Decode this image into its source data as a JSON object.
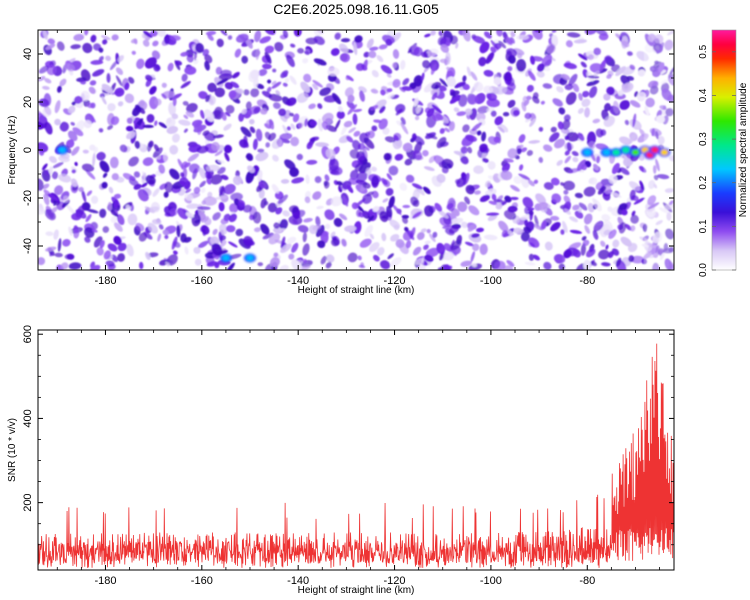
{
  "title": "C2E6.2025.098.16.11.G05",
  "chart_data": [
    {
      "type": "heatmap",
      "title": "C2E6.2025.098.16.11.G05",
      "xlabel": "Height of straight line (km)",
      "ylabel": "Frequency (Hz)",
      "xlim": [
        -194,
        -62
      ],
      "ylim": [
        -50,
        50
      ],
      "x_ticks": [
        -180,
        -160,
        -140,
        -120,
        -100,
        -80
      ],
      "x_tick_labels": [
        "-180",
        "-160",
        "-140",
        "-120",
        "-100",
        "-80"
      ],
      "y_ticks": [
        -40,
        -20,
        0,
        20,
        40
      ],
      "y_tick_labels": [
        "-40",
        "-20",
        "0",
        "20",
        "40"
      ],
      "colorbar": {
        "label": "Normalized spectral amplitude",
        "range": [
          0,
          0.55
        ],
        "ticks": [
          0,
          0.1,
          0.2,
          0.3,
          0.4,
          0.5
        ],
        "tick_labels": [
          "0.0",
          "0.1",
          "0.2",
          "0.3",
          "0.4",
          "0.5"
        ],
        "colormap": "rainbow (white-purple-blue-cyan-green-yellow-red-magenta)"
      },
      "background_level": 0.1,
      "hot_spots": [
        {
          "x": -80,
          "y": -1,
          "value": 0.12
        },
        {
          "x": -76,
          "y": -1,
          "value": 0.14
        },
        {
          "x": -74,
          "y": -1,
          "value": 0.16
        },
        {
          "x": -72,
          "y": 0,
          "value": 0.2
        },
        {
          "x": -70,
          "y": -1,
          "value": 0.25
        },
        {
          "x": -68,
          "y": 0,
          "value": 0.35
        },
        {
          "x": -67,
          "y": -2,
          "value": 0.5
        },
        {
          "x": -66,
          "y": 0,
          "value": 0.45
        },
        {
          "x": -64,
          "y": -1,
          "value": 0.3
        },
        {
          "x": -189,
          "y": 0,
          "value": 0.12
        },
        {
          "x": -155,
          "y": -45,
          "value": 0.12
        },
        {
          "x": -150,
          "y": -45,
          "value": 0.12
        }
      ]
    },
    {
      "type": "line",
      "xlabel": "Height of straight line (km)",
      "ylabel": "SNR (10 * v/v)",
      "xlim": [
        -194,
        -62
      ],
      "ylim": [
        40,
        610
      ],
      "x_ticks": [
        -180,
        -160,
        -140,
        -120,
        -100,
        -80
      ],
      "x_tick_labels": [
        "-180",
        "-160",
        "-140",
        "-120",
        "-100",
        "-80"
      ],
      "y_ticks": [
        200,
        400,
        600
      ],
      "y_tick_labels": [
        "200",
        "400",
        "600"
      ],
      "series": [
        {
          "color": "#ee3333",
          "baseline_mean": 100,
          "noise_band": [
            55,
            190
          ],
          "occasional_peaks_to": 260,
          "tail_envelope": [
            {
              "x": -194,
              "max": 230
            },
            {
              "x": -90,
              "max": 240
            },
            {
              "x": -75,
              "max": 290
            },
            {
              "x": -70,
              "max": 380
            },
            {
              "x": -68,
              "max": 480
            },
            {
              "x": -66,
              "max": 600
            },
            {
              "x": -65,
              "max": 550
            },
            {
              "x": -63,
              "max": 420
            },
            {
              "x": -62,
              "max": 300
            }
          ]
        }
      ]
    }
  ]
}
